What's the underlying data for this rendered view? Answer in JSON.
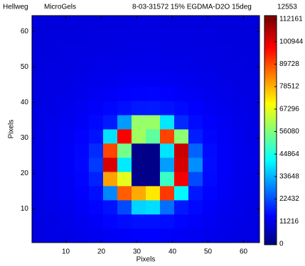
{
  "chart_data": {
    "type": "heatmap",
    "header_texts": [
      "Hellweg",
      "MicroGels",
      "8-03-31572 15% EGDMA-D2O 15deg",
      "12553"
    ],
    "xlabel": "Pixels",
    "ylabel": "Pixels",
    "colormap": "jet",
    "xlim": [
      0.5,
      64.5
    ],
    "ylim": [
      0.5,
      64.5
    ],
    "xticks": [
      10,
      20,
      30,
      40,
      50,
      60
    ],
    "yticks": [
      10,
      20,
      30,
      40,
      50,
      60
    ],
    "clim": [
      0,
      112161
    ],
    "cticks": [
      0,
      11216,
      22432,
      33648,
      44864,
      56080,
      67296,
      78512,
      89728,
      100944,
      112161
    ],
    "x": [
      2.5,
      6.5,
      10.5,
      14.5,
      18.5,
      22.5,
      26.5,
      30.5,
      34.5,
      38.5,
      42.5,
      46.5,
      50.5,
      54.5,
      58.5,
      62.5
    ],
    "y": [
      2.5,
      6.5,
      10.5,
      14.5,
      18.5,
      22.5,
      26.5,
      30.5,
      34.5,
      38.5,
      42.5,
      46.5,
      50.5,
      54.5,
      58.5,
      62.5
    ],
    "z": [
      [
        10800,
        11000,
        11400,
        11900,
        12400,
        13000,
        13500,
        13900,
        13900,
        13600,
        13100,
        12600,
        12000,
        11500,
        11100,
        10800
      ],
      [
        10900,
        11300,
        11800,
        12500,
        13300,
        14300,
        15100,
        15700,
        15700,
        15300,
        14500,
        13600,
        12700,
        12000,
        11400,
        11000
      ],
      [
        11100,
        11600,
        12300,
        13200,
        14400,
        15900,
        22100,
        37300,
        38400,
        26100,
        16700,
        14800,
        13500,
        12500,
        11800,
        11200
      ],
      [
        11300,
        11900,
        12700,
        14000,
        15600,
        28800,
        87900,
        79400,
        72500,
        92100,
        41600,
        16400,
        14300,
        13000,
        12000,
        11400
      ],
      [
        11400,
        12000,
        13000,
        14500,
        17700,
        80400,
        67000,
        1000,
        1000,
        48300,
        99400,
        22200,
        15000,
        13300,
        12200,
        11500
      ],
      [
        11400,
        12100,
        13200,
        14700,
        20400,
        102300,
        39900,
        1000,
        1000,
        31400,
        102600,
        29700,
        15200,
        13500,
        12300,
        11600
      ],
      [
        11400,
        12100,
        13000,
        14600,
        18600,
        90500,
        54900,
        1000,
        1000,
        39200,
        104100,
        24800,
        15100,
        13400,
        12300,
        11500
      ],
      [
        11300,
        11900,
        12800,
        14100,
        15900,
        38900,
        98600,
        59600,
        52400,
        90900,
        57600,
        17100,
        14500,
        13000,
        12100,
        11400
      ],
      [
        11100,
        11700,
        12400,
        13400,
        14800,
        16800,
        31200,
        58600,
        58900,
        39400,
        18400,
        15100,
        13700,
        12600,
        11800,
        11300
      ],
      [
        11000,
        11400,
        12000,
        12700,
        13600,
        14600,
        15600,
        16700,
        16800,
        15900,
        14900,
        13900,
        12900,
        12100,
        11500,
        11100
      ],
      [
        10800,
        11100,
        11500,
        12000,
        12600,
        13300,
        13900,
        14200,
        14300,
        14000,
        13400,
        12800,
        12200,
        11700,
        11200,
        10900
      ],
      [
        10600,
        10900,
        11200,
        11500,
        11900,
        12300,
        12600,
        12800,
        12800,
        12700,
        12400,
        12000,
        11600,
        11200,
        10900,
        10700
      ],
      [
        10500,
        10700,
        10900,
        11100,
        11300,
        11600,
        11800,
        11900,
        11900,
        11800,
        11600,
        11400,
        11100,
        10900,
        10700,
        10500
      ],
      [
        10400,
        10500,
        10600,
        10800,
        10900,
        11100,
        11200,
        11300,
        11300,
        11200,
        11100,
        11000,
        10800,
        10700,
        10500,
        10400
      ],
      [
        10300,
        10400,
        10400,
        10500,
        10700,
        10700,
        10800,
        10900,
        10900,
        10800,
        10800,
        10700,
        10600,
        10500,
        10400,
        10300
      ],
      [
        10200,
        10300,
        10300,
        10400,
        10400,
        10500,
        10500,
        10600,
        10600,
        10500,
        10500,
        10500,
        10400,
        10300,
        10300,
        10200
      ]
    ]
  }
}
